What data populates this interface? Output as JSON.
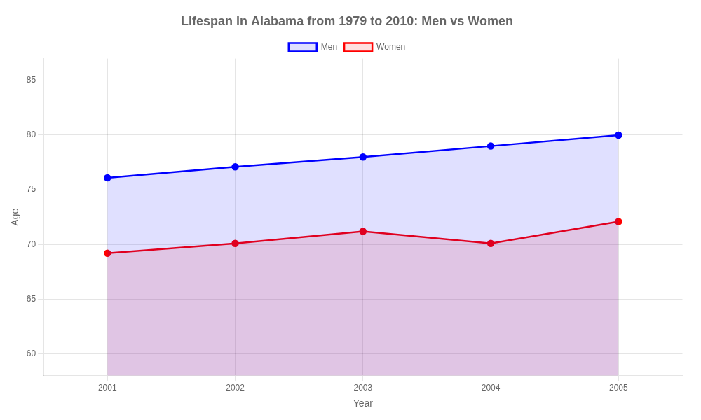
{
  "chart_data": {
    "type": "area",
    "title": "Lifespan in Alabama from 1979 to 2010: Men vs Women",
    "xlabel": "Year",
    "ylabel": "Age",
    "x": [
      2001,
      2002,
      2003,
      2004,
      2005
    ],
    "series": [
      {
        "name": "Men",
        "color": "#0000FF",
        "values": [
          76.1,
          77.1,
          78.0,
          79.0,
          80.0
        ],
        "marker": "circle"
      },
      {
        "name": "Women",
        "color": "#FF0000",
        "values": [
          69.2,
          70.1,
          71.2,
          70.1,
          72.1
        ],
        "marker": "circle"
      }
    ],
    "xlim": [
      2000.5,
      2005.5
    ],
    "xticks": [
      2001,
      2002,
      2003,
      2004,
      2005
    ],
    "ylim": [
      58,
      87
    ],
    "yticks": [
      60,
      65,
      70,
      75,
      80,
      85
    ],
    "grid": true,
    "legend": "top"
  }
}
